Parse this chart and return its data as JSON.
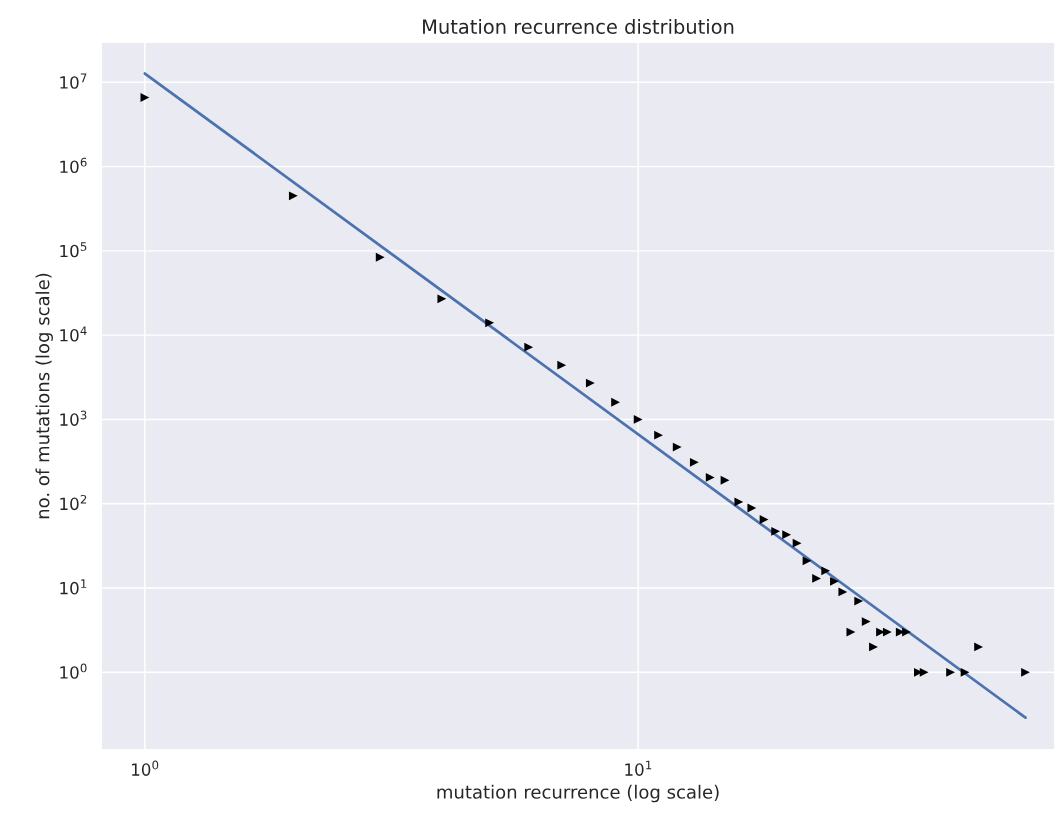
{
  "chart_data": {
    "type": "scatter",
    "title": "Mutation recurrence distribution",
    "xlabel": "mutation recurrence (log scale)",
    "ylabel": "no. of mutations (log scale)",
    "log": "xy",
    "grid": true,
    "xlim": [
      0.815,
      70
    ],
    "ylim": [
      0.12,
      30000000
    ],
    "xticks": [
      {
        "value": 1,
        "label": "10$^{0}$"
      },
      {
        "value": 10,
        "label": "10$^{1}$"
      }
    ],
    "yticks": [
      {
        "value": 1,
        "label": "10$^{0}$"
      },
      {
        "value": 10,
        "label": "10$^{1}$"
      },
      {
        "value": 100,
        "label": "10$^{2}$"
      },
      {
        "value": 1000,
        "label": "10$^{3}$"
      },
      {
        "value": 10000,
        "label": "10$^{4}$"
      },
      {
        "value": 100000,
        "label": "10$^{5}$"
      },
      {
        "value": 1000000,
        "label": "10$^{6}$"
      },
      {
        "value": 10000000,
        "label": "10$^{7}$"
      }
    ],
    "series": [
      {
        "marker": "triangle",
        "color": "#000000",
        "x": [
          1,
          2,
          3,
          4,
          5,
          6,
          7,
          8,
          9,
          10,
          11,
          12,
          13,
          14,
          15,
          16,
          17,
          18,
          19,
          20,
          21,
          22,
          23,
          24,
          25,
          26,
          27,
          28,
          29,
          30,
          31,
          32,
          34,
          35,
          37,
          38,
          43,
          46,
          49,
          61
        ],
        "values": [
          6600000,
          450000,
          84000,
          27000,
          14000,
          7200,
          4400,
          2700,
          1600,
          1000,
          650,
          470,
          310,
          205,
          190,
          105,
          89,
          65,
          47,
          43,
          34,
          21,
          13,
          16,
          12,
          9,
          3,
          7,
          4,
          2,
          3,
          3,
          3,
          3,
          1,
          1,
          1,
          1,
          2,
          1
        ]
      },
      {
        "type": "line",
        "marker": "none",
        "color": "#4c72b0",
        "x": [
          1,
          61
        ],
        "values": [
          12700000,
          0.29
        ]
      }
    ]
  }
}
